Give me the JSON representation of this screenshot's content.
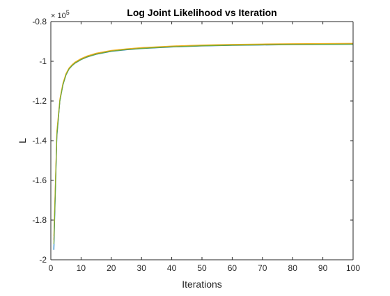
{
  "chart_data": {
    "type": "line",
    "title": "Log Joint Likelihood vs Iteration",
    "xlabel": "Iterations",
    "ylabel": "L",
    "xlim": [
      0,
      100
    ],
    "ylim": [
      -200000,
      -80000
    ],
    "y_exponent_label": "× 10",
    "y_exponent_power": "5",
    "x_ticks": [
      0,
      10,
      20,
      30,
      40,
      50,
      60,
      70,
      80,
      90,
      100
    ],
    "x_tick_labels": [
      "0",
      "10",
      "20",
      "30",
      "40",
      "50",
      "60",
      "70",
      "80",
      "90",
      "100"
    ],
    "y_ticks": [
      -200000,
      -180000,
      -160000,
      -140000,
      -120000,
      -100000,
      -80000
    ],
    "y_tick_labels": [
      "-2",
      "-1.8",
      "-1.6",
      "-1.4",
      "-1.2",
      "-1",
      "-0.8"
    ],
    "grid": false,
    "legend": "none",
    "series": [
      {
        "color": "#0072BD",
        "x": [
          1,
          2,
          3,
          4,
          5,
          6,
          7,
          8,
          10,
          12,
          15,
          20,
          25,
          30,
          40,
          50,
          60,
          70,
          80,
          90,
          100
        ],
        "y": [
          -195000,
          -138000,
          -120000,
          -112000,
          -107000,
          -104000,
          -102300,
          -101000,
          -99200,
          -97900,
          -96500,
          -95000,
          -94200,
          -93600,
          -92800,
          -92300,
          -92000,
          -91800,
          -91650,
          -91550,
          -91450
        ]
      },
      {
        "color": "#D95319",
        "x": [
          1,
          2,
          3,
          4,
          5,
          6,
          7,
          8,
          10,
          12,
          15,
          20,
          25,
          30,
          40,
          50,
          60,
          70,
          80,
          90,
          100
        ],
        "y": [
          -190000,
          -136000,
          -119500,
          -111500,
          -106600,
          -103700,
          -102000,
          -100700,
          -98900,
          -97600,
          -96200,
          -94800,
          -94000,
          -93400,
          -92600,
          -92100,
          -91800,
          -91600,
          -91450,
          -91350,
          -91250
        ]
      },
      {
        "color": "#EDB120",
        "x": [
          1,
          2,
          3,
          4,
          5,
          6,
          7,
          8,
          10,
          12,
          15,
          20,
          25,
          30,
          40,
          50,
          60,
          70,
          80,
          90,
          100
        ],
        "y": [
          -188000,
          -135000,
          -118800,
          -111000,
          -106200,
          -103400,
          -101700,
          -100400,
          -98600,
          -97300,
          -95900,
          -94500,
          -93700,
          -93100,
          -92300,
          -91800,
          -91500,
          -91300,
          -91150,
          -91050,
          -90950
        ]
      },
      {
        "color": "#77AC30",
        "x": [
          1,
          2,
          3,
          4,
          5,
          6,
          7,
          8,
          10,
          12,
          15,
          20,
          25,
          30,
          40,
          50,
          60,
          70,
          80,
          90,
          100
        ],
        "y": [
          -192000,
          -137000,
          -119800,
          -111800,
          -106900,
          -103900,
          -102200,
          -100900,
          -99100,
          -97800,
          -96400,
          -94900,
          -94100,
          -93500,
          -92700,
          -92200,
          -91900,
          -91700,
          -91550,
          -91450,
          -91350
        ]
      }
    ]
  }
}
